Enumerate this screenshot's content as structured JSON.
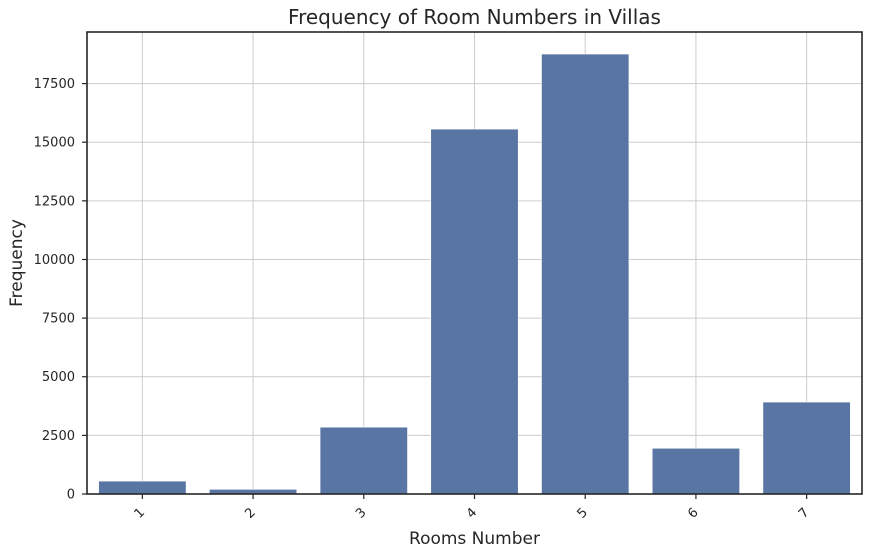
{
  "chart_data": {
    "type": "bar",
    "title": "Frequency of Room Numbers in Villas",
    "xlabel": "Rooms Number",
    "ylabel": "Frequency",
    "categories": [
      "1",
      "2",
      "3",
      "4",
      "5",
      "6",
      "7"
    ],
    "values": [
      550,
      200,
      2850,
      15560,
      18760,
      1950,
      3920
    ],
    "ylim": [
      0,
      19700
    ],
    "yticks": [
      0,
      2500,
      5000,
      7500,
      10000,
      12500,
      15000,
      17500
    ],
    "ytick_labels": [
      "0",
      "2500",
      "5000",
      "7500",
      "10000",
      "12500",
      "15000",
      "17500"
    ],
    "xtick_rotation": -45,
    "grid": true,
    "bar_color": "#5975a4"
  }
}
